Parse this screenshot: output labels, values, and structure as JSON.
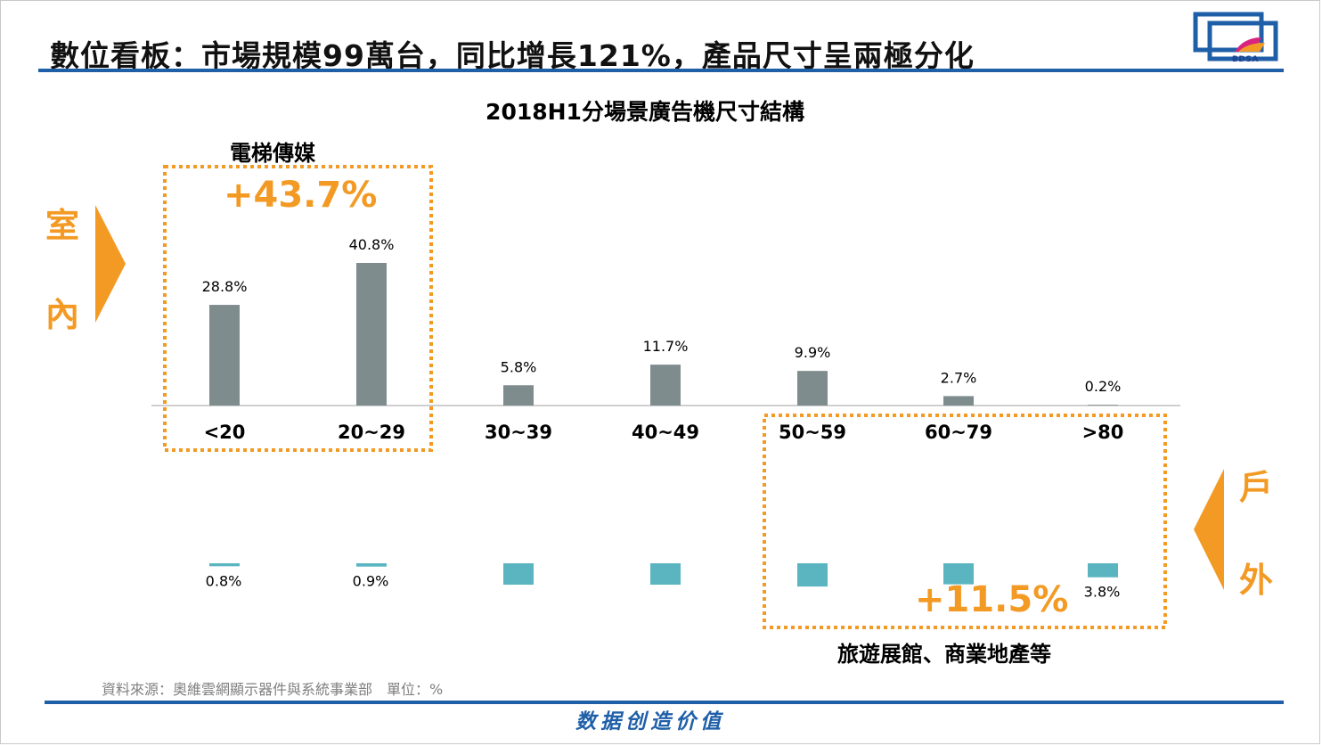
{
  "header": {
    "title": "數位看板：市場規模99萬台，同比增長121%，產品尺寸呈兩極分化",
    "logo_text": "BDSA",
    "accent": "#1f5fa8"
  },
  "side_labels": {
    "indoor": [
      "室",
      "內"
    ],
    "outdoor": [
      "戶",
      "外"
    ],
    "color": "#f39a24"
  },
  "callouts": {
    "indoor_box_label": "電梯傳媒",
    "indoor_growth": "+43.7%",
    "outdoor_box_label": "旅遊展館、商業地產等",
    "outdoor_growth": "+11.5%"
  },
  "chart_data": {
    "type": "bar",
    "title": "2018H1分場景廣告機尺寸結構",
    "categories": [
      "<20",
      "20~29",
      "30~39",
      "40~49",
      "50~59",
      "60~79",
      ">80"
    ],
    "series": [
      {
        "values": [
          28.8,
          40.8,
          5.8,
          11.7,
          9.9,
          2.7,
          0.2
        ],
        "labels": [
          "28.8%",
          "40.8%",
          "5.8%",
          "11.7%",
          "9.9%",
          "2.7%",
          "0.2%"
        ],
        "color": "#7f8c8d"
      },
      {
        "values": [
          0.8,
          0.9,
          5.8,
          5.8,
          6.3,
          5.7,
          3.8
        ],
        "labels": [
          "0.8%",
          "0.9%",
          "",
          "",
          "",
          "",
          "3.8%"
        ],
        "color": "#5ab5c1"
      }
    ],
    "unit": "%"
  },
  "footer": {
    "source": "資料來源：奧維雲網顯示器件與系統事業部　單位：%",
    "slogan": "数据创造价值"
  }
}
